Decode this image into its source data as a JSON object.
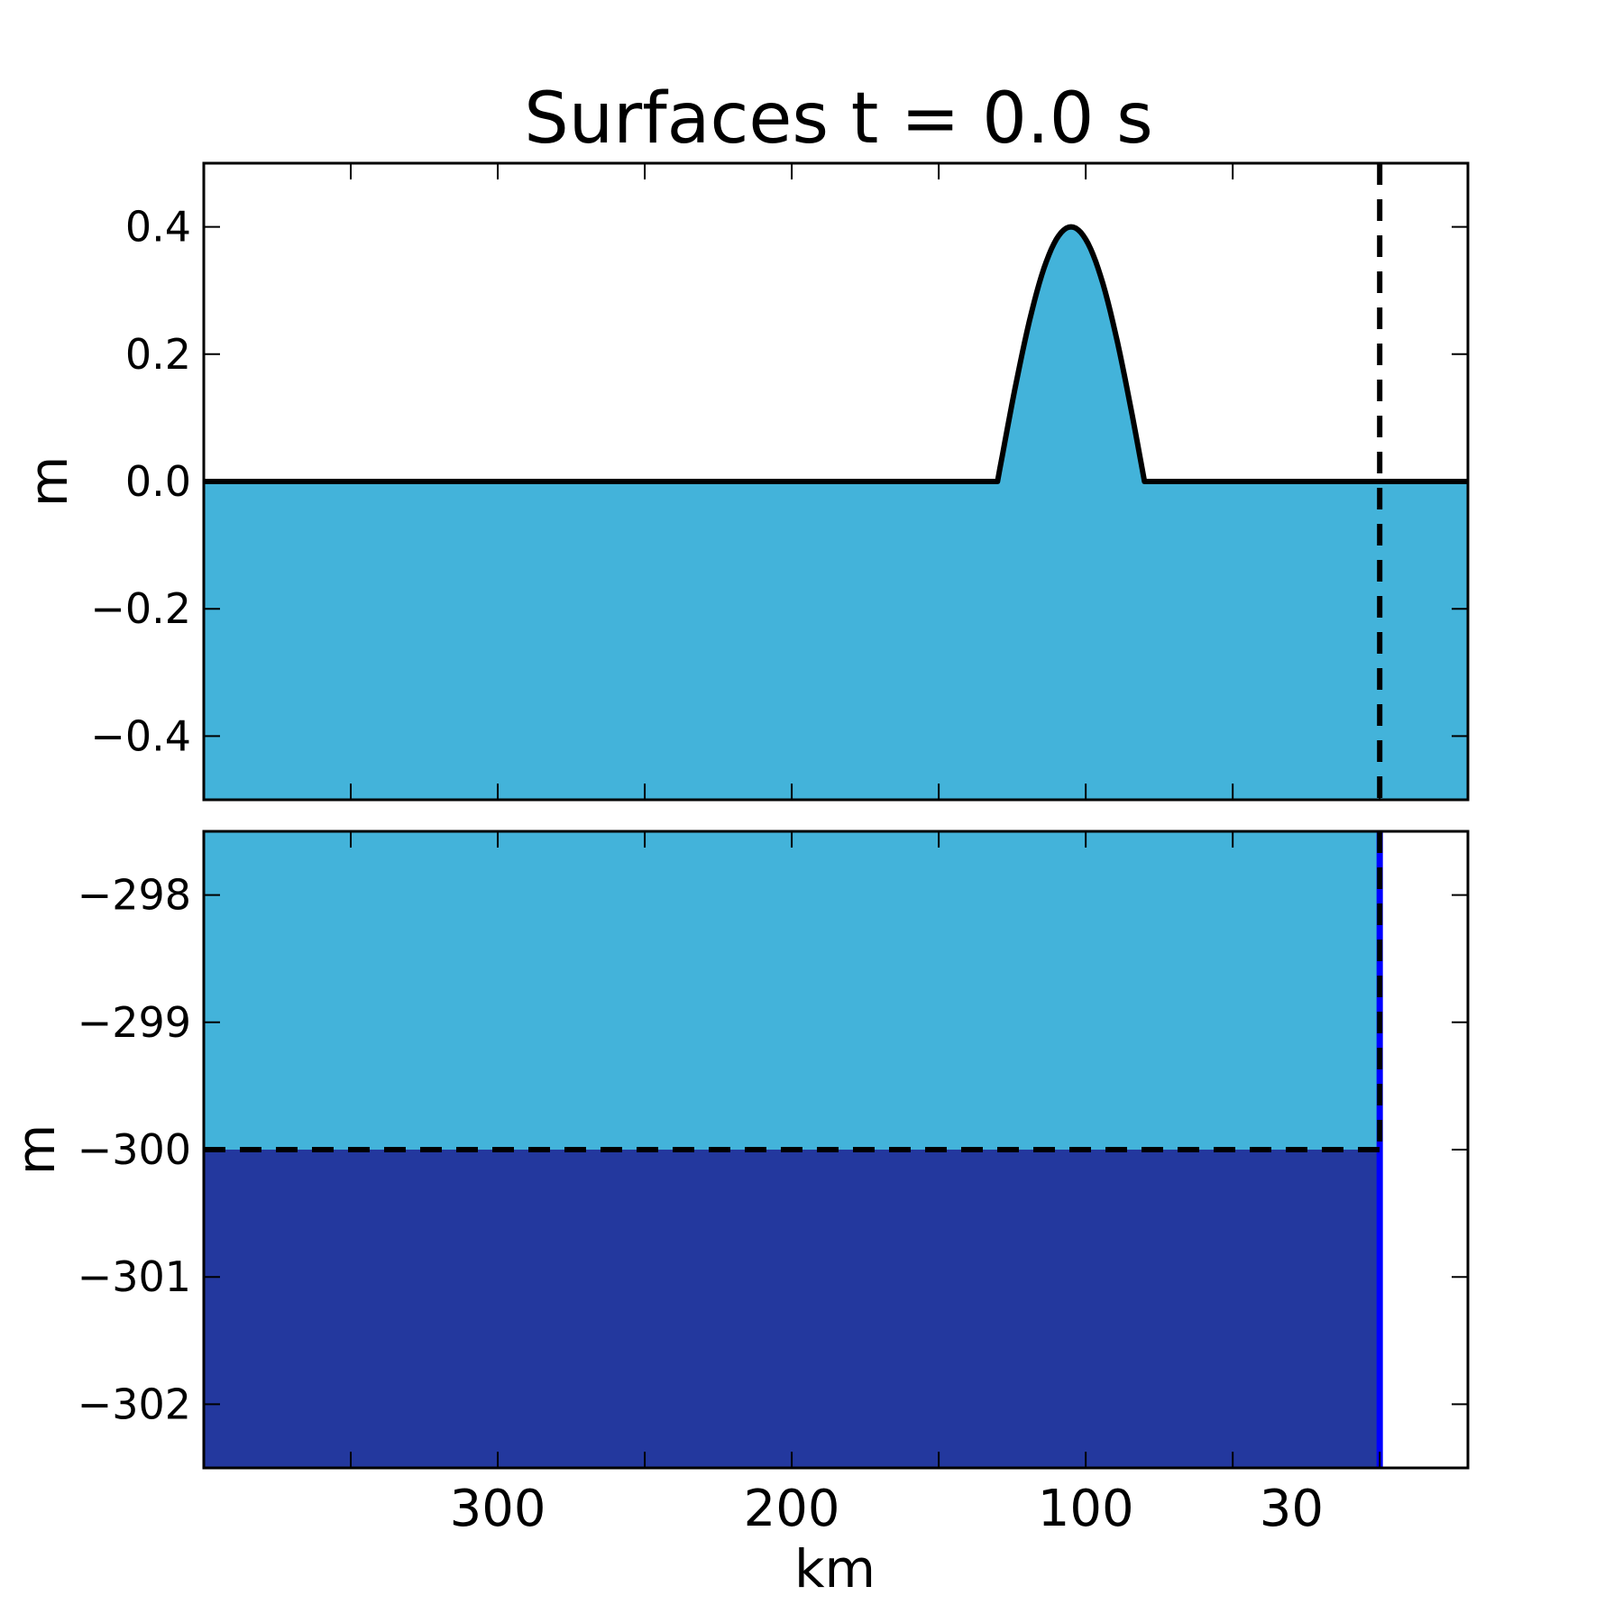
{
  "chart_data": {
    "title": "Surfaces t =  0.0 s",
    "colors": {
      "water": "#43b3da",
      "lower_layer": "#23389e",
      "interface_line": "#0000ff",
      "line": "#000000"
    },
    "x_axis": {
      "label": "km",
      "range": [
        400,
        -30
      ],
      "ticks": [
        300,
        200,
        100,
        30
      ],
      "tick_labels": [
        "300",
        "200",
        "100",
        "30"
      ],
      "minor_ticks": [
        350,
        300,
        250,
        200,
        150,
        100,
        50,
        0
      ]
    },
    "panels": [
      {
        "type": "area",
        "ylabel": "m",
        "ylim": [
          -0.5,
          0.5
        ],
        "ticks": [
          0.4,
          0.2,
          0.0,
          -0.2,
          -0.4
        ],
        "tick_labels": [
          "0.4",
          "0.2",
          "0.0",
          "−0.2",
          "−0.4"
        ],
        "surface": {
          "base_level": 0.0,
          "hump": {
            "x_start": 130,
            "x_end": 80,
            "peak_x": 105,
            "peak": 0.4
          }
        },
        "boundary_x": 0
      },
      {
        "type": "area",
        "ylabel": "m",
        "ylim": [
          -302.5,
          -297.5
        ],
        "ticks": [
          -298,
          -299,
          -300,
          -301,
          -302
        ],
        "tick_labels": [
          "−298",
          "−299",
          "−300",
          "−301",
          "−302"
        ],
        "interface_level": -300,
        "domain_end_x": 0,
        "boundary_x": 0
      }
    ]
  }
}
